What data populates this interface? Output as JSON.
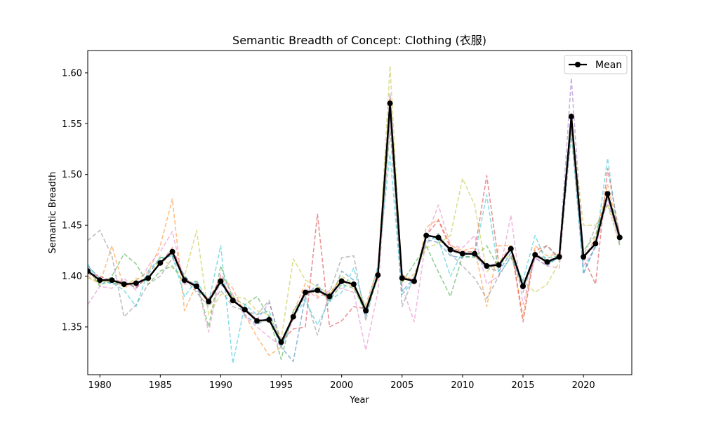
{
  "chart_data": {
    "type": "line",
    "title": "Semantic Breadth of Concept: Clothing (衣服)",
    "xlabel": "Year",
    "ylabel": "Semantic Breadth",
    "xlim": [
      1979,
      2024
    ],
    "ylim": [
      1.303,
      1.622
    ],
    "xticks": [
      1980,
      1985,
      1990,
      1995,
      2000,
      2005,
      2010,
      2015,
      2020
    ],
    "yticks": [
      1.35,
      1.4,
      1.45,
      1.5,
      1.55,
      1.6
    ],
    "xtick_labels": [
      "1980",
      "1985",
      "1990",
      "1995",
      "2000",
      "2005",
      "2010",
      "2015",
      "2020"
    ],
    "ytick_labels": [
      "1.35",
      "1.40",
      "1.45",
      "1.50",
      "1.55",
      "1.60"
    ],
    "grid": false,
    "legend": {
      "position": "top-right",
      "entries": [
        "Mean"
      ]
    },
    "x": [
      1979,
      1980,
      1981,
      1982,
      1983,
      1984,
      1985,
      1986,
      1987,
      1988,
      1989,
      1990,
      1991,
      1992,
      1993,
      1994,
      1995,
      1996,
      1997,
      1998,
      1999,
      2000,
      2001,
      2002,
      2003,
      2004,
      2005,
      2006,
      2007,
      2008,
      2009,
      2010,
      2011,
      2012,
      2013,
      2014,
      2015,
      2016,
      2017,
      2018,
      2019,
      2020,
      2021,
      2022,
      2023
    ],
    "series": [
      {
        "name": "Mean",
        "color": "#000000",
        "style": "solid-marker",
        "values": [
          1.405,
          1.396,
          1.396,
          1.392,
          1.393,
          1.398,
          1.413,
          1.424,
          1.396,
          1.39,
          1.375,
          1.395,
          1.376,
          1.367,
          1.356,
          1.357,
          1.335,
          1.36,
          1.384,
          1.386,
          1.38,
          1.395,
          1.392,
          1.366,
          1.401,
          1.57,
          1.398,
          1.395,
          1.44,
          1.438,
          1.426,
          1.422,
          1.422,
          1.41,
          1.411,
          1.427,
          1.39,
          1.421,
          1.414,
          1.419,
          1.557,
          1.419,
          1.432,
          1.481,
          1.438
        ]
      },
      {
        "color": "#1f77b4",
        "style": "dashed",
        "values": [
          1.41,
          1.398,
          1.392,
          1.395,
          1.388,
          1.402,
          1.418,
          1.42,
          1.401,
          1.386,
          1.378,
          1.392,
          1.38,
          1.362,
          1.352,
          1.36,
          1.33,
          1.316,
          1.38,
          1.392,
          1.374,
          1.405,
          1.396,
          1.36,
          1.404,
          1.56,
          1.385,
          1.398,
          1.436,
          1.433,
          1.42,
          1.418,
          1.42,
          1.408,
          1.405,
          1.423,
          1.388,
          1.418,
          1.41,
          1.42,
          1.548,
          1.402,
          1.43,
          1.478,
          1.435
        ]
      },
      {
        "color": "#ff7f0e",
        "style": "dashed",
        "values": [
          1.4,
          1.392,
          1.43,
          1.388,
          1.396,
          1.404,
          1.43,
          1.476,
          1.366,
          1.392,
          1.372,
          1.4,
          1.388,
          1.362,
          1.34,
          1.322,
          1.33,
          1.364,
          1.393,
          1.38,
          1.383,
          1.398,
          1.388,
          1.372,
          1.408,
          1.575,
          1.402,
          1.392,
          1.448,
          1.456,
          1.43,
          1.425,
          1.428,
          1.37,
          1.43,
          1.43,
          1.36,
          1.43,
          1.42,
          1.422,
          1.54,
          1.416,
          1.438,
          1.49,
          1.44
        ]
      },
      {
        "color": "#2ca02c",
        "style": "dashed",
        "values": [
          1.408,
          1.39,
          1.4,
          1.422,
          1.412,
          1.392,
          1.405,
          1.41,
          1.393,
          1.395,
          1.35,
          1.41,
          1.378,
          1.372,
          1.38,
          1.36,
          1.318,
          1.366,
          1.382,
          1.388,
          1.376,
          1.392,
          1.388,
          1.364,
          1.398,
          1.545,
          1.394,
          1.412,
          1.43,
          1.404,
          1.38,
          1.42,
          1.418,
          1.43,
          1.408,
          1.428,
          1.392,
          1.42,
          1.418,
          1.42,
          1.552,
          1.425,
          1.44,
          1.482,
          1.44
        ]
      },
      {
        "color": "#d62728",
        "style": "dashed",
        "values": [
          1.404,
          1.4,
          1.395,
          1.394,
          1.389,
          1.399,
          1.412,
          1.428,
          1.398,
          1.39,
          1.377,
          1.398,
          1.377,
          1.368,
          1.357,
          1.356,
          1.336,
          1.348,
          1.35,
          1.461,
          1.35,
          1.356,
          1.37,
          1.368,
          1.4,
          1.575,
          1.4,
          1.396,
          1.44,
          1.455,
          1.428,
          1.424,
          1.424,
          1.499,
          1.412,
          1.43,
          1.355,
          1.425,
          1.43,
          1.418,
          1.56,
          1.418,
          1.392,
          1.506,
          1.44
        ]
      },
      {
        "color": "#9467bd",
        "style": "dashed",
        "values": [
          1.406,
          1.397,
          1.397,
          1.391,
          1.394,
          1.397,
          1.414,
          1.425,
          1.395,
          1.391,
          1.374,
          1.394,
          1.375,
          1.368,
          1.357,
          1.374,
          1.336,
          1.361,
          1.385,
          1.387,
          1.381,
          1.394,
          1.393,
          1.367,
          1.4,
          1.58,
          1.399,
          1.394,
          1.441,
          1.437,
          1.425,
          1.421,
          1.423,
          1.411,
          1.412,
          1.426,
          1.391,
          1.422,
          1.415,
          1.42,
          1.595,
          1.42,
          1.433,
          1.48,
          1.437
        ]
      },
      {
        "color": "#8c564b",
        "style": "dashed",
        "values": [
          1.403,
          1.395,
          1.398,
          1.393,
          1.392,
          1.399,
          1.412,
          1.423,
          1.397,
          1.389,
          1.376,
          1.396,
          1.377,
          1.366,
          1.355,
          1.358,
          1.334,
          1.359,
          1.383,
          1.385,
          1.379,
          1.396,
          1.391,
          1.365,
          1.402,
          1.568,
          1.397,
          1.396,
          1.439,
          1.439,
          1.427,
          1.423,
          1.421,
          1.409,
          1.41,
          1.428,
          1.389,
          1.42,
          1.413,
          1.418,
          1.558,
          1.418,
          1.431,
          1.482,
          1.439
        ]
      },
      {
        "color": "#e377c2",
        "style": "dashed",
        "values": [
          1.372,
          1.39,
          1.388,
          1.398,
          1.386,
          1.41,
          1.424,
          1.444,
          1.392,
          1.394,
          1.345,
          1.402,
          1.382,
          1.36,
          1.35,
          1.34,
          1.331,
          1.357,
          1.388,
          1.378,
          1.386,
          1.388,
          1.384,
          1.327,
          1.385,
          1.552,
          1.39,
          1.355,
          1.438,
          1.47,
          1.43,
          1.428,
          1.44,
          1.392,
          1.4,
          1.46,
          1.372,
          1.418,
          1.41,
          1.408,
          1.545,
          1.41,
          1.428,
          1.476,
          1.432
        ]
      },
      {
        "color": "#7f7f7f",
        "style": "dashed",
        "values": [
          1.435,
          1.445,
          1.42,
          1.36,
          1.372,
          1.392,
          1.4,
          1.418,
          1.398,
          1.384,
          1.37,
          1.386,
          1.37,
          1.366,
          1.362,
          1.376,
          1.332,
          1.362,
          1.38,
          1.342,
          1.384,
          1.418,
          1.42,
          1.356,
          1.406,
          1.565,
          1.37,
          1.4,
          1.432,
          1.442,
          1.422,
          1.41,
          1.398,
          1.378,
          1.4,
          1.42,
          1.384,
          1.42,
          1.43,
          1.416,
          1.56,
          1.42,
          1.448,
          1.47,
          1.445
        ]
      },
      {
        "color": "#bcbd22",
        "style": "dashed",
        "values": [
          1.398,
          1.395,
          1.394,
          1.39,
          1.398,
          1.395,
          1.42,
          1.408,
          1.4,
          1.445,
          1.362,
          1.382,
          1.38,
          1.378,
          1.366,
          1.362,
          1.338,
          1.417,
          1.396,
          1.39,
          1.382,
          1.4,
          1.392,
          1.37,
          1.398,
          1.607,
          1.394,
          1.402,
          1.428,
          1.432,
          1.44,
          1.496,
          1.47,
          1.404,
          1.416,
          1.42,
          1.396,
          1.384,
          1.392,
          1.414,
          1.55,
          1.45,
          1.45,
          1.47,
          1.43
        ]
      },
      {
        "color": "#17becf",
        "style": "dashed",
        "values": [
          1.412,
          1.392,
          1.394,
          1.386,
          1.37,
          1.405,
          1.418,
          1.42,
          1.38,
          1.396,
          1.374,
          1.43,
          1.314,
          1.372,
          1.362,
          1.366,
          1.33,
          1.36,
          1.376,
          1.352,
          1.376,
          1.384,
          1.408,
          1.366,
          1.41,
          1.52,
          1.382,
          1.396,
          1.438,
          1.436,
          1.4,
          1.424,
          1.42,
          1.48,
          1.402,
          1.418,
          1.396,
          1.44,
          1.412,
          1.418,
          1.54,
          1.404,
          1.43,
          1.516,
          1.43
        ]
      }
    ]
  }
}
